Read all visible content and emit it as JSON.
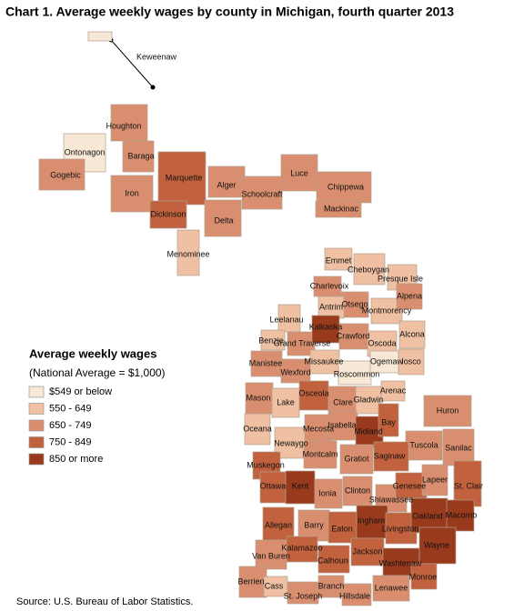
{
  "title": "Chart 1. Average weekly wages by county in Michigan, fourth quarter 2013",
  "legend": {
    "title": "Average weekly wages",
    "subtitle": "(National Average = $1,000)",
    "items": [
      {
        "label": "$549 or below",
        "color": "#f8e8d6"
      },
      {
        "label": "550 - 649",
        "color": "#efc0a2"
      },
      {
        "label": "650 - 749",
        "color": "#d98f6f"
      },
      {
        "label": "750 - 849",
        "color": "#c2613d"
      },
      {
        "label": "850 or more",
        "color": "#993a1c"
      }
    ]
  },
  "counties": [
    {
      "name": "Keweenaw",
      "color": "#f8e8d6"
    },
    {
      "name": "Houghton",
      "color": "#d98f6f"
    },
    {
      "name": "Ontonagon",
      "color": "#f8e8d6"
    },
    {
      "name": "Baraga",
      "color": "#d98f6f"
    },
    {
      "name": "Gogebic",
      "color": "#d98f6f"
    },
    {
      "name": "Iron",
      "color": "#d98f6f"
    },
    {
      "name": "Marquette",
      "color": "#c2613d"
    },
    {
      "name": "Alger",
      "color": "#d98f6f"
    },
    {
      "name": "Dickinson",
      "color": "#c2613d"
    },
    {
      "name": "Delta",
      "color": "#d98f6f"
    },
    {
      "name": "Menominee",
      "color": "#efc0a2"
    },
    {
      "name": "Schoolcraft",
      "color": "#d98f6f"
    },
    {
      "name": "Luce",
      "color": "#d98f6f"
    },
    {
      "name": "Chippewa",
      "color": "#d98f6f"
    },
    {
      "name": "Mackinac",
      "color": "#d98f6f"
    },
    {
      "name": "Emmet",
      "color": "#efc0a2"
    },
    {
      "name": "Cheboygan",
      "color": "#efc0a2"
    },
    {
      "name": "Presque Isle",
      "color": "#efc0a2"
    },
    {
      "name": "Charlevoix",
      "color": "#d98f6f"
    },
    {
      "name": "Otsego",
      "color": "#d98f6f"
    },
    {
      "name": "Montmorency",
      "color": "#efc0a2"
    },
    {
      "name": "Alpena",
      "color": "#d98f6f"
    },
    {
      "name": "Antrim",
      "color": "#efc0a2"
    },
    {
      "name": "Leelanau",
      "color": "#efc0a2"
    },
    {
      "name": "Benzie",
      "color": "#efc0a2"
    },
    {
      "name": "Grand Traverse",
      "color": "#d98f6f"
    },
    {
      "name": "Kalkaska",
      "color": "#993a1c"
    },
    {
      "name": "Crawford",
      "color": "#d98f6f"
    },
    {
      "name": "Oscoda",
      "color": "#efc0a2"
    },
    {
      "name": "Alcona",
      "color": "#efc0a2"
    },
    {
      "name": "Manistee",
      "color": "#d98f6f"
    },
    {
      "name": "Wexford",
      "color": "#d98f6f"
    },
    {
      "name": "Missaukee",
      "color": "#efc0a2"
    },
    {
      "name": "Roscommon",
      "color": "#f8e8d6"
    },
    {
      "name": "Ogemaw",
      "color": "#f8e8d6"
    },
    {
      "name": "Iosco",
      "color": "#efc0a2"
    },
    {
      "name": "Mason",
      "color": "#d98f6f"
    },
    {
      "name": "Lake",
      "color": "#efc0a2"
    },
    {
      "name": "Osceola",
      "color": "#c2613d"
    },
    {
      "name": "Clare",
      "color": "#d98f6f"
    },
    {
      "name": "Gladwin",
      "color": "#efc0a2"
    },
    {
      "name": "Arenac",
      "color": "#efc0a2"
    },
    {
      "name": "Huron",
      "color": "#d98f6f"
    },
    {
      "name": "Oceana",
      "color": "#efc0a2"
    },
    {
      "name": "Newaygo",
      "color": "#efc0a2"
    },
    {
      "name": "Mecosta",
      "color": "#d98f6f"
    },
    {
      "name": "Isabella",
      "color": "#d98f6f"
    },
    {
      "name": "Midland",
      "color": "#993a1c"
    },
    {
      "name": "Bay",
      "color": "#c2613d"
    },
    {
      "name": "Tuscola",
      "color": "#d98f6f"
    },
    {
      "name": "Sanilac",
      "color": "#d98f6f"
    },
    {
      "name": "Muskegon",
      "color": "#c2613d"
    },
    {
      "name": "Montcalm",
      "color": "#d98f6f"
    },
    {
      "name": "Gratiot",
      "color": "#d98f6f"
    },
    {
      "name": "Saginaw",
      "color": "#c2613d"
    },
    {
      "name": "Ottawa",
      "color": "#c2613d"
    },
    {
      "name": "Kent",
      "color": "#993a1c"
    },
    {
      "name": "Ionia",
      "color": "#d98f6f"
    },
    {
      "name": "Clinton",
      "color": "#d98f6f"
    },
    {
      "name": "Shiawassee",
      "color": "#d98f6f"
    },
    {
      "name": "Genesee",
      "color": "#c2613d"
    },
    {
      "name": "Lapeer",
      "color": "#d98f6f"
    },
    {
      "name": "St. Clair",
      "color": "#c2613d"
    },
    {
      "name": "Allegan",
      "color": "#c2613d"
    },
    {
      "name": "Barry",
      "color": "#d98f6f"
    },
    {
      "name": "Eaton",
      "color": "#c2613d"
    },
    {
      "name": "Ingham",
      "color": "#993a1c"
    },
    {
      "name": "Livingston",
      "color": "#c2613d"
    },
    {
      "name": "Oakland",
      "color": "#993a1c"
    },
    {
      "name": "Macomb",
      "color": "#993a1c"
    },
    {
      "name": "Van Buren",
      "color": "#d98f6f"
    },
    {
      "name": "Kalamazoo",
      "color": "#c2613d"
    },
    {
      "name": "Calhoun",
      "color": "#c2613d"
    },
    {
      "name": "Jackson",
      "color": "#c2613d"
    },
    {
      "name": "Washtenaw",
      "color": "#993a1c"
    },
    {
      "name": "Wayne",
      "color": "#993a1c"
    },
    {
      "name": "Berrien",
      "color": "#d98f6f"
    },
    {
      "name": "Cass",
      "color": "#efc0a2"
    },
    {
      "name": "St. Joseph",
      "color": "#d98f6f"
    },
    {
      "name": "Branch",
      "color": "#d98f6f"
    },
    {
      "name": "Hillsdale",
      "color": "#d98f6f"
    },
    {
      "name": "Lenawee",
      "color": "#d98f6f"
    },
    {
      "name": "Monroe",
      "color": "#c2613d"
    }
  ],
  "source": "Source: U.S. Bureau of Labor Statistics."
}
